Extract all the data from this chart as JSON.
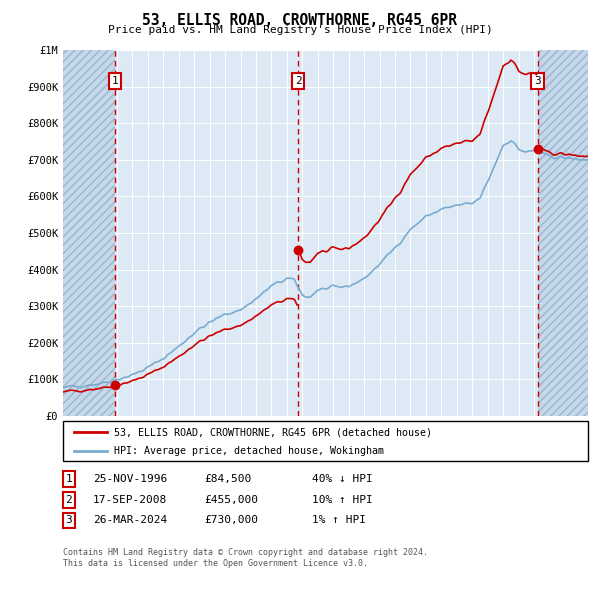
{
  "title": "53, ELLIS ROAD, CROWTHORNE, RG45 6PR",
  "subtitle": "Price paid vs. HM Land Registry's House Price Index (HPI)",
  "legend_line1": "53, ELLIS ROAD, CROWTHORNE, RG45 6PR (detached house)",
  "legend_line2": "HPI: Average price, detached house, Wokingham",
  "footer1": "Contains HM Land Registry data © Crown copyright and database right 2024.",
  "footer2": "This data is licensed under the Open Government Licence v3.0.",
  "sale_display": [
    [
      "1",
      "25-NOV-1996",
      "£84,500",
      "40% ↓ HPI"
    ],
    [
      "2",
      "17-SEP-2008",
      "£455,000",
      "10% ↑ HPI"
    ],
    [
      "3",
      "26-MAR-2024",
      "£730,000",
      "1% ↑ HPI"
    ]
  ],
  "ylim": [
    0,
    1000000
  ],
  "xlim_start": 1993.5,
  "xlim_end": 2027.5,
  "hatch_left_end_year": 1996.89,
  "hatch_right_start_year": 2024.23,
  "sale_years": [
    1996.89,
    2008.72,
    2024.23
  ],
  "sale_prices": [
    84500,
    455000,
    730000
  ],
  "red_color": "#cc0000",
  "blue_color": "#7aabcf",
  "background_plot": "#ddeaf5",
  "grid_color": "#ffffff"
}
